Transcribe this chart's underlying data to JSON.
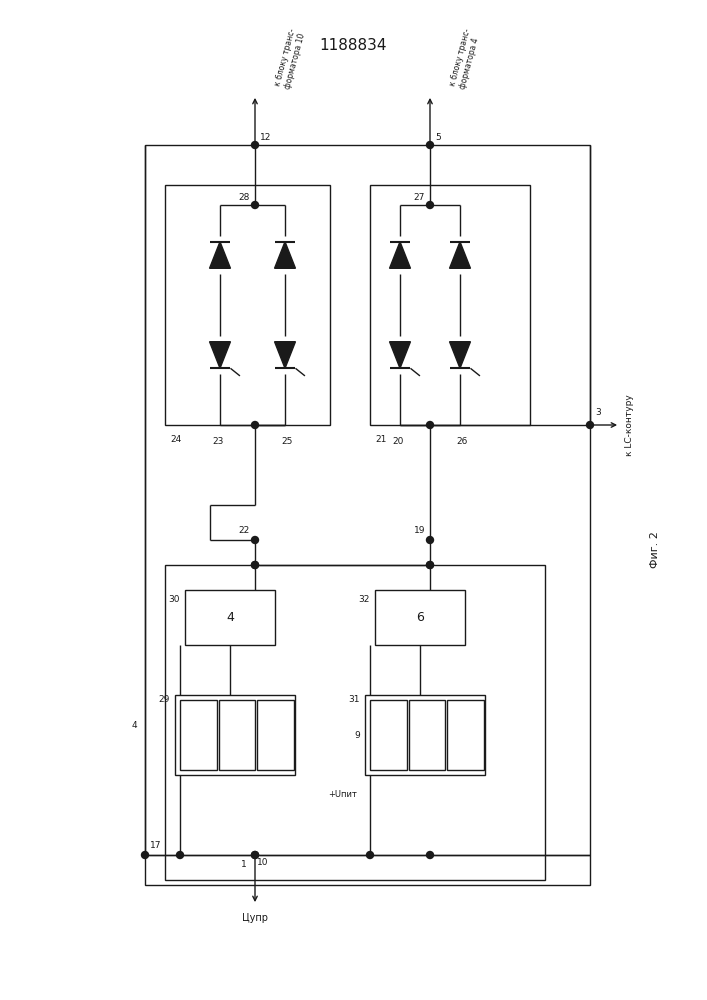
{
  "title": "1188834",
  "line_color": "#1a1a1a",
  "lw": 1.0,
  "fig2": "Фиг. 2",
  "lc_label": "к LC-контуру",
  "left_label": "к блоку транс-\nформатора 10",
  "right_label": "к блоку транс-\nформатора 4",
  "upr_label": "Цупр",
  "upit_label": "+Uпит",
  "node4_label": "4"
}
